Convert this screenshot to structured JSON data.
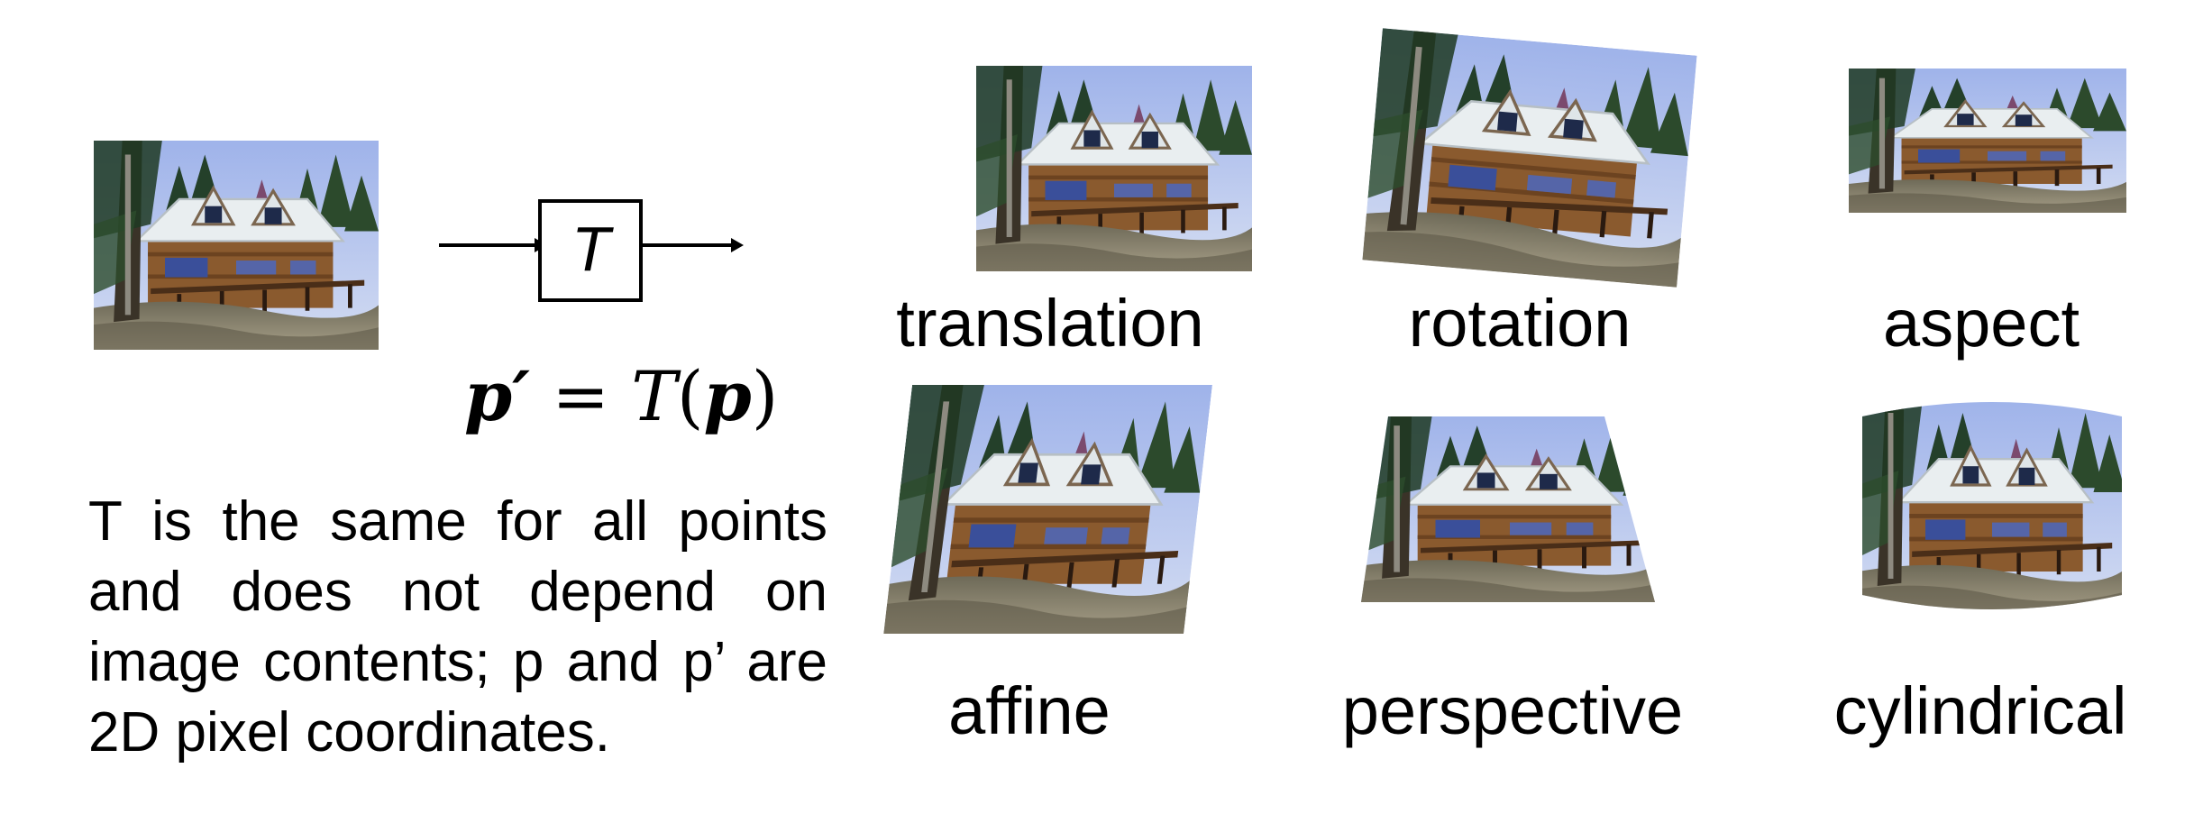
{
  "diagram": {
    "operator": "T",
    "formula": {
      "lhs": "p′",
      "eq": "=",
      "fn": "T",
      "arg": "p"
    },
    "description_lines": [
      "T is the same for all points",
      "and does not depend on",
      "image contents; p and p’ are",
      "2D pixel coordinates."
    ]
  },
  "transforms": [
    {
      "label": "translation"
    },
    {
      "label": "rotation"
    },
    {
      "label": "aspect"
    },
    {
      "label": "affine"
    },
    {
      "label": "perspective"
    },
    {
      "label": "cylindrical"
    }
  ],
  "colors": {
    "sky": "#b9c8ee",
    "roof": "#e9eef0",
    "wall": "#8a5a2e",
    "tree": "#1f3a22",
    "ground": "#8c8470"
  }
}
